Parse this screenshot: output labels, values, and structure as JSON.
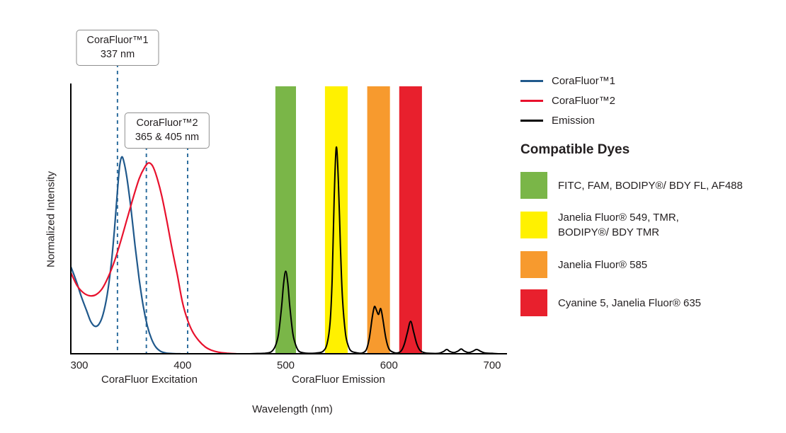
{
  "chart_data": {
    "type": "line",
    "title": "",
    "xlabel": "Wavelength (nm)",
    "ylabel": "Normalized Intensity",
    "x_axis": {
      "min": 292,
      "max": 713,
      "ticks": [
        300,
        400,
        500,
        600,
        700
      ]
    },
    "y_axis": {
      "min": 0,
      "max": 1.1,
      "gridlines": false
    },
    "region_labels": [
      {
        "text": "CoraFluor Excitation"
      },
      {
        "text": "CoraFluor Emission"
      }
    ],
    "bands": [
      {
        "dyes": "FITC, FAM, BODIPY/BDY FL, AF488",
        "from_nm": 490,
        "to_nm": 510,
        "color": "#7ab648"
      },
      {
        "dyes": "Janelia Fluor 549, TMR, BODIPY/BDY TMR",
        "from_nm": 538,
        "to_nm": 560,
        "color": "#fff100"
      },
      {
        "dyes": "Janelia Fluor 585",
        "from_nm": 579,
        "to_nm": 601,
        "color": "#f79a2e"
      },
      {
        "dyes": "Cyanine 5, Janelia Fluor 635",
        "from_nm": 610,
        "to_nm": 632,
        "color": "#e8202d"
      }
    ],
    "dashed_lines": [
      {
        "nm": 337,
        "color": "#2f6f9f"
      },
      {
        "nm": 365,
        "color": "#2f6f9f"
      },
      {
        "nm": 405,
        "color": "#2f6f9f"
      }
    ],
    "series": [
      {
        "name": "CoraFluor™1",
        "color": "#20598c",
        "points": [
          [
            292,
            0.44
          ],
          [
            297,
            0.37
          ],
          [
            302,
            0.29
          ],
          [
            307,
            0.22
          ],
          [
            311,
            0.165
          ],
          [
            315,
            0.14
          ],
          [
            319,
            0.15
          ],
          [
            323,
            0.2
          ],
          [
            327,
            0.3
          ],
          [
            331,
            0.46
          ],
          [
            334,
            0.63
          ],
          [
            337,
            0.83
          ],
          [
            339,
            0.95
          ],
          [
            341,
            1.0
          ],
          [
            343,
            0.98
          ],
          [
            346,
            0.9
          ],
          [
            350,
            0.74
          ],
          [
            354,
            0.55
          ],
          [
            358,
            0.38
          ],
          [
            362,
            0.24
          ],
          [
            366,
            0.14
          ],
          [
            370,
            0.075
          ],
          [
            374,
            0.035
          ],
          [
            379,
            0.012
          ],
          [
            384,
            0.004
          ],
          [
            390,
            0.001
          ],
          [
            398,
            0
          ]
        ]
      },
      {
        "name": "CoraFluor™2",
        "color": "#e8112d",
        "points": [
          [
            292,
            0.41
          ],
          [
            298,
            0.345
          ],
          [
            304,
            0.31
          ],
          [
            310,
            0.295
          ],
          [
            316,
            0.3
          ],
          [
            322,
            0.33
          ],
          [
            328,
            0.39
          ],
          [
            334,
            0.47
          ],
          [
            340,
            0.57
          ],
          [
            346,
            0.68
          ],
          [
            352,
            0.79
          ],
          [
            358,
            0.89
          ],
          [
            363,
            0.945
          ],
          [
            367,
            0.97
          ],
          [
            371,
            0.955
          ],
          [
            375,
            0.9
          ],
          [
            380,
            0.8
          ],
          [
            385,
            0.67
          ],
          [
            390,
            0.53
          ],
          [
            395,
            0.4
          ],
          [
            400,
            0.26
          ],
          [
            405,
            0.17
          ],
          [
            410,
            0.11
          ],
          [
            416,
            0.065
          ],
          [
            422,
            0.035
          ],
          [
            428,
            0.018
          ],
          [
            435,
            0.008
          ],
          [
            443,
            0.003
          ],
          [
            452,
            0
          ]
        ]
      },
      {
        "name": "Emission",
        "color": "#000000",
        "points": [
          [
            460,
            0
          ],
          [
            470,
            0.001
          ],
          [
            480,
            0.003
          ],
          [
            486,
            0.01
          ],
          [
            490,
            0.04
          ],
          [
            493,
            0.1
          ],
          [
            496,
            0.24
          ],
          [
            498,
            0.36
          ],
          [
            500,
            0.42
          ],
          [
            502,
            0.36
          ],
          [
            504,
            0.24
          ],
          [
            507,
            0.1
          ],
          [
            510,
            0.04
          ],
          [
            513,
            0.012
          ],
          [
            518,
            0.004
          ],
          [
            524,
            0.002
          ],
          [
            530,
            0.004
          ],
          [
            536,
            0.012
          ],
          [
            540,
            0.05
          ],
          [
            543,
            0.16
          ],
          [
            545,
            0.38
          ],
          [
            547,
            0.8
          ],
          [
            549,
            1.05
          ],
          [
            551,
            0.88
          ],
          [
            553,
            0.55
          ],
          [
            555,
            0.28
          ],
          [
            558,
            0.1
          ],
          [
            561,
            0.035
          ],
          [
            564,
            0.012
          ],
          [
            570,
            0.004
          ],
          [
            574,
            0.004
          ],
          [
            578,
            0.02
          ],
          [
            581,
            0.08
          ],
          [
            584,
            0.19
          ],
          [
            586,
            0.24
          ],
          [
            588,
            0.22
          ],
          [
            590,
            0.2
          ],
          [
            592,
            0.23
          ],
          [
            594,
            0.18
          ],
          [
            597,
            0.08
          ],
          [
            600,
            0.025
          ],
          [
            604,
            0.008
          ],
          [
            608,
            0.004
          ],
          [
            612,
            0.015
          ],
          [
            615,
            0.05
          ],
          [
            618,
            0.11
          ],
          [
            621,
            0.165
          ],
          [
            624,
            0.11
          ],
          [
            627,
            0.05
          ],
          [
            630,
            0.018
          ],
          [
            634,
            0.006
          ],
          [
            640,
            0.002
          ],
          [
            648,
            0.002
          ],
          [
            653,
            0.012
          ],
          [
            656,
            0.022
          ],
          [
            659,
            0.012
          ],
          [
            663,
            0.006
          ],
          [
            667,
            0.014
          ],
          [
            670,
            0.024
          ],
          [
            673,
            0.014
          ],
          [
            677,
            0.006
          ],
          [
            681,
            0.012
          ],
          [
            685,
            0.022
          ],
          [
            689,
            0.012
          ],
          [
            693,
            0.004
          ],
          [
            700,
            0.002
          ],
          [
            706,
            0
          ]
        ]
      }
    ]
  },
  "annotations": {
    "box1": {
      "line1": "CoraFluor™1",
      "line2": "337 nm"
    },
    "box2": {
      "line1": "CoraFluor™2",
      "line2": "365 & 405 nm"
    }
  },
  "legend": {
    "lines": [
      {
        "label": "CoraFluor™1",
        "color": "#20598c"
      },
      {
        "label": "CoraFluor™2",
        "color": "#e8112d"
      },
      {
        "label": "Emission",
        "color": "#000000"
      }
    ],
    "dyes_heading": "Compatible Dyes",
    "dyes": [
      {
        "color": "#7ab648",
        "lines": [
          "FITC, FAM, BODIPY®/ BDY FL, AF488"
        ]
      },
      {
        "color": "#fff100",
        "lines": [
          "Janelia Fluor® 549, TMR,",
          "BODIPY®/ BDY TMR"
        ]
      },
      {
        "color": "#f79a2e",
        "lines": [
          "Janelia Fluor® 585"
        ]
      },
      {
        "color": "#e8202d",
        "lines": [
          "Cyanine 5, Janelia Fluor® 635"
        ]
      }
    ]
  }
}
